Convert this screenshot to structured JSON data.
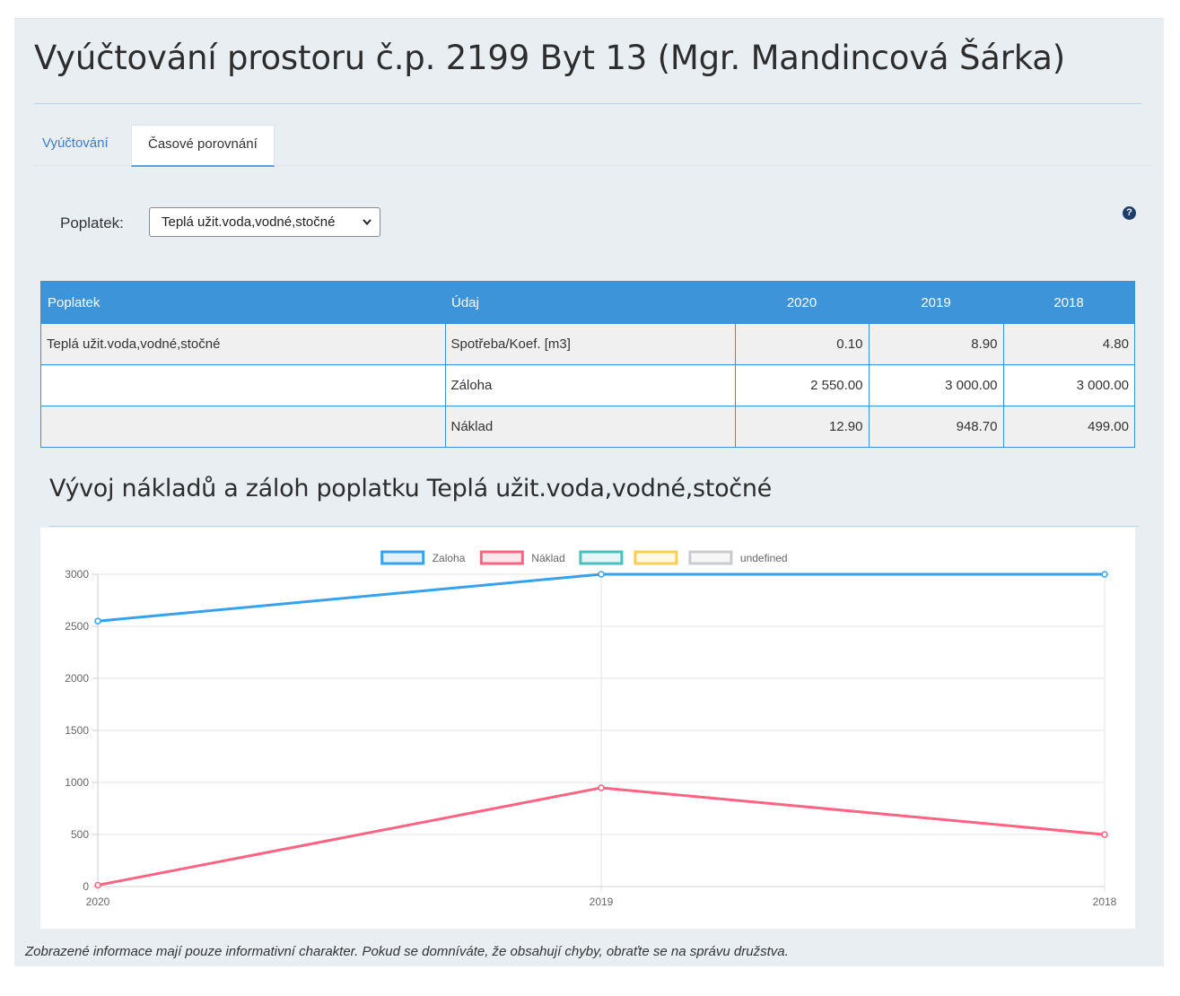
{
  "page": {
    "title": "Vyúčtování prostoru č.p. 2199 Byt 13 (Mgr. Mandincová Šárka)"
  },
  "tabs": [
    {
      "label": "Vyúčtování",
      "active": false
    },
    {
      "label": "Časové porovnání",
      "active": true
    }
  ],
  "filter": {
    "label": "Poplatek:",
    "selected": "Teplá užit.voda,vodné,stočné"
  },
  "help": {
    "icon": "question-circle-icon",
    "glyph": "?"
  },
  "table": {
    "headers": [
      "Poplatek",
      "Údaj",
      "2020",
      "2019",
      "2018"
    ],
    "rows": [
      [
        "Teplá užit.voda,vodné,stočné",
        "Spotřeba/Koef. [m3]",
        "0.10",
        "8.90",
        "4.80"
      ],
      [
        "",
        "Záloha",
        "2 550.00",
        "3 000.00",
        "3 000.00"
      ],
      [
        "",
        "Náklad",
        "12.90",
        "948.70",
        "499.00"
      ]
    ]
  },
  "chart_title": "Vývoj nákladů a záloh poplatku Teplá užit.voda,vodné,stočné",
  "chart_data": {
    "type": "line",
    "categories": [
      "2020",
      "2019",
      "2018"
    ],
    "series": [
      {
        "name": "Zaloha",
        "values": [
          2550,
          3000,
          3000
        ],
        "color": "#36a2eb"
      },
      {
        "name": "Náklad",
        "values": [
          12.9,
          948.7,
          499
        ],
        "color": "#ff6384"
      }
    ],
    "legend": [
      {
        "label": "Zaloha",
        "color": "#36a2eb"
      },
      {
        "label": "Náklad",
        "color": "#ff6384"
      },
      {
        "label": "",
        "color": "#4bc0c0"
      },
      {
        "label": "",
        "color": "#ffcd56"
      },
      {
        "label": "undefined",
        "color": "#c9cbcf"
      }
    ],
    "legend_position": "top",
    "ylim": [
      0,
      3000
    ],
    "yticks": [
      "0",
      "500",
      "1000",
      "1500",
      "2000",
      "2500",
      "3000"
    ],
    "grid": true
  },
  "footer": "Zobrazené informace mají pouze informativní charakter. Pokud se domníváte, že obsahují chyby, obraťte se na správu družstva."
}
